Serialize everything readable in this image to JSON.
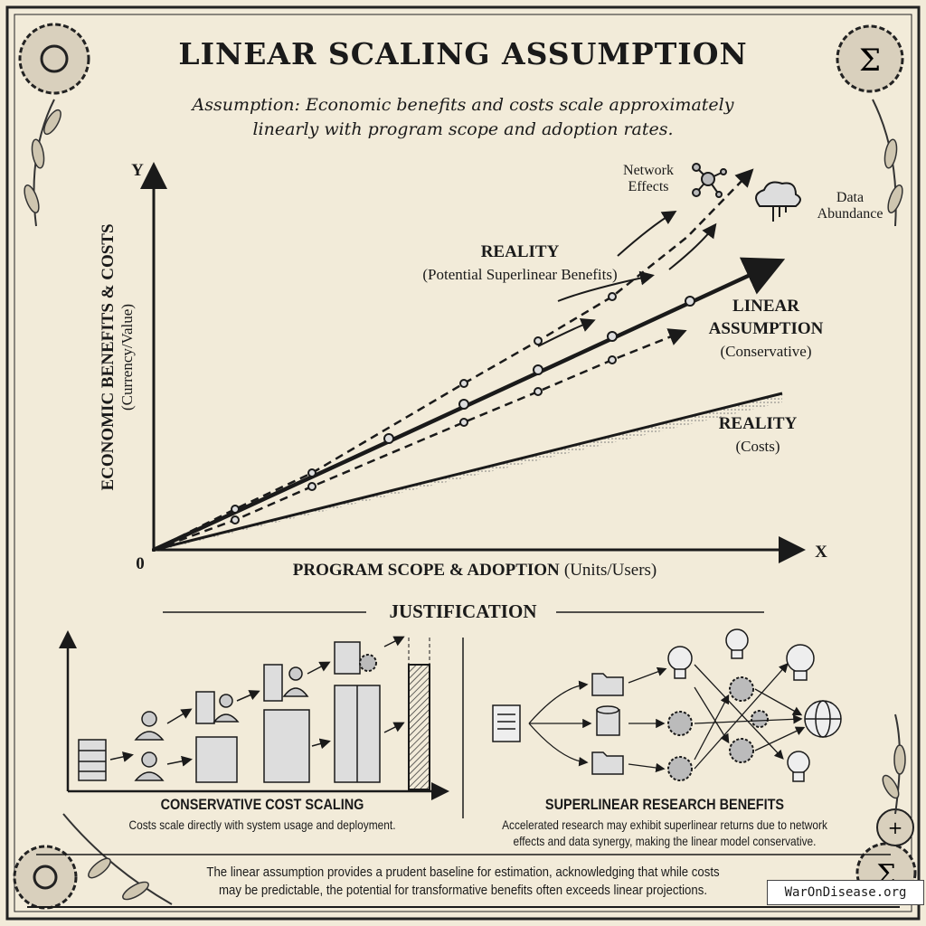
{
  "title": "LINEAR SCALING ASSUMPTION",
  "subtitle": [
    "Assumption: Economic benefits and costs scale approximately",
    "linearly with program scope and adoption rates."
  ],
  "main_chart": {
    "y_axis_letter": "Y",
    "x_axis_letter": "X",
    "origin_label": "0",
    "y_label": "ECONOMIC BENEFITS & COSTS",
    "y_label_sub": "(Currency/Value)",
    "x_label": "PROGRAM SCOPE & ADOPTION",
    "x_label_sub": "(Units/Users)",
    "reality_benefits": {
      "title": "REALITY",
      "sub": "(Potential Superlinear Benefits)"
    },
    "linear": {
      "title1": "LINEAR",
      "title2": "ASSUMPTION",
      "sub": "(Conservative)"
    },
    "reality_costs": {
      "title": "REALITY",
      "sub": "(Costs)"
    },
    "network_effects": [
      "Network",
      "Effects"
    ],
    "data_abundance": [
      "Data",
      "Abundance"
    ],
    "icons": [
      "network-icon",
      "cloud-data-icon"
    ]
  },
  "justification": {
    "heading": "JUSTIFICATION",
    "left": {
      "title": "CONSERVATIVE COST SCALING",
      "text": "Costs scale directly with system usage and deployment.",
      "icons": [
        "server-icon",
        "person-icon",
        "computer-icon",
        "server-rack-icon",
        "gear-icon"
      ]
    },
    "right": {
      "title": "SUPERLINEAR RESEARCH BENEFITS",
      "text": [
        "Accelerated research may exhibit superlinear returns due to network",
        "effects and data synergy, making the linear model conservative."
      ],
      "icons": [
        "document-icon",
        "folder-icon",
        "database-icon",
        "gear-icon",
        "lightbulb-icon",
        "globe-icon"
      ]
    }
  },
  "footer": [
    "The linear assumption provides a prudent baseline for estimation, acknowledging that while costs",
    "may be predictable, the potential for transformative benefits often exceeds linear projections."
  ],
  "watermark": "WarOnDisease.org",
  "colors": {
    "background": "#f2ebd9",
    "ink": "#1a1a1a"
  }
}
